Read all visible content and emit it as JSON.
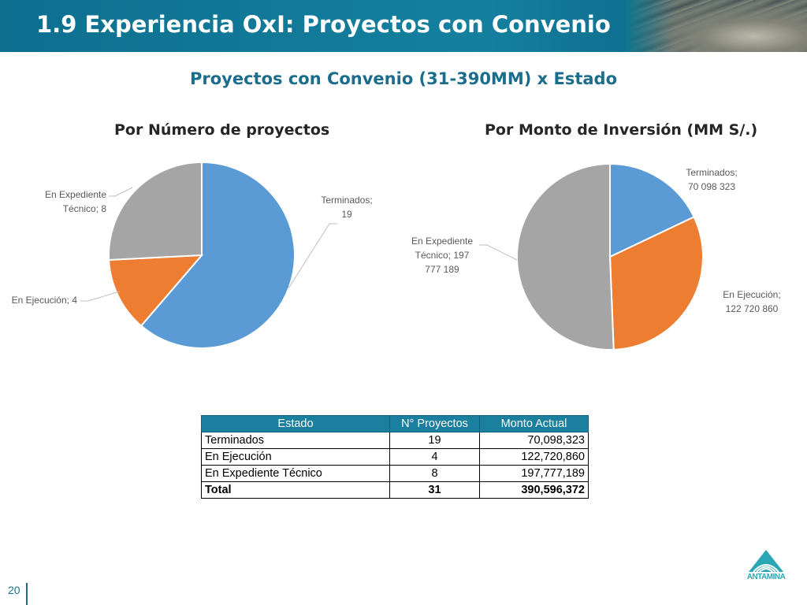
{
  "page": {
    "title": "1.9 Experiencia OxI: Proyectos con Convenio",
    "subtitle": "Proyectos con Convenio (31-390MM) x Estado",
    "page_number": "20",
    "logo_text": "ANTAMINA"
  },
  "colors": {
    "terminados": "#5b9bd5",
    "ejecucion": "#ed7d31",
    "expediente": "#a5a5a5",
    "header": "#14809f",
    "accent": "#1b6d8c"
  },
  "chart_data": [
    {
      "type": "pie",
      "title": "Por Número de proyectos",
      "categories": [
        "Terminados",
        "En Ejecución",
        "En Expediente Técnico"
      ],
      "values": [
        19,
        4,
        8
      ],
      "labels": [
        [
          "Terminados;",
          "19"
        ],
        [
          "En Ejecución; 4"
        ],
        [
          "En Expediente",
          "Técnico; 8"
        ]
      ]
    },
    {
      "type": "pie",
      "title": "Por Monto de Inversión (MM S/.)",
      "categories": [
        "Terminados",
        "En Ejecución",
        "En Expediente Técnico"
      ],
      "values": [
        70098323,
        122720860,
        197777189
      ],
      "labels": [
        [
          "Terminados;",
          "70 098 323"
        ],
        [
          "En Ejecución;",
          "122 720 860"
        ],
        [
          "En Expediente",
          "Técnico;  197",
          "777 189"
        ]
      ]
    }
  ],
  "table": {
    "headers": [
      "Estado",
      "N° Proyectos",
      "Monto Actual"
    ],
    "rows": [
      [
        "Terminados",
        "19",
        "70,098,323"
      ],
      [
        "En Ejecución",
        "4",
        "122,720,860"
      ],
      [
        "En Expediente Técnico",
        "8",
        "197,777,189"
      ]
    ],
    "total": [
      "Total",
      "31",
      "390,596,372"
    ]
  }
}
